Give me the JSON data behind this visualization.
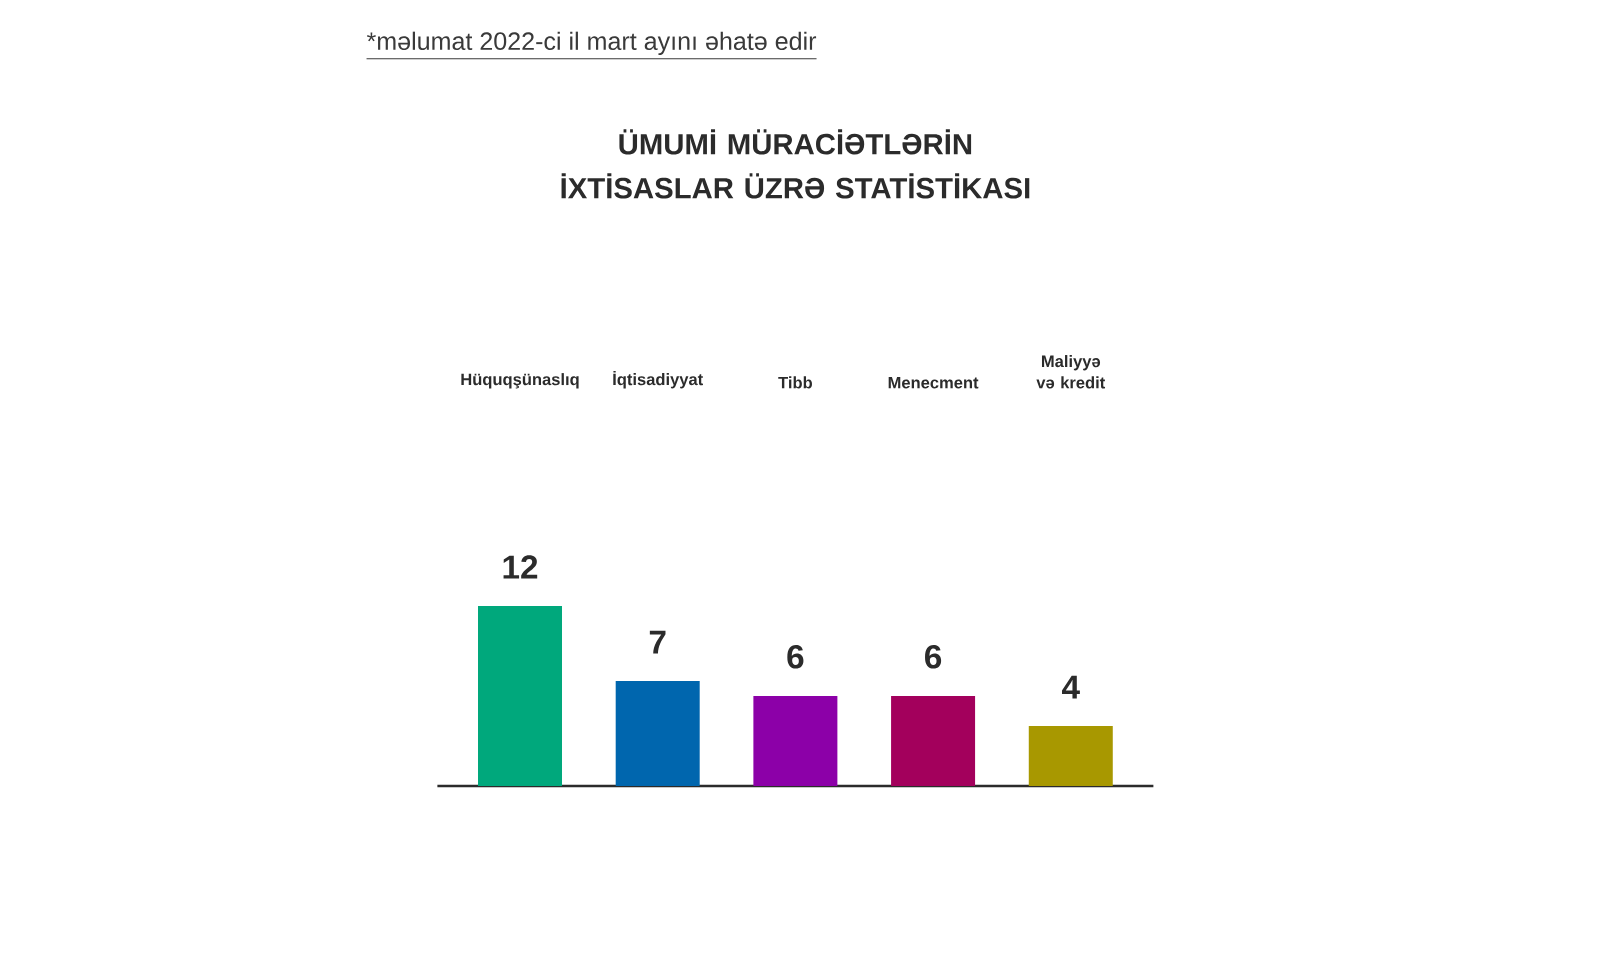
{
  "chart_data": {
    "type": "bar",
    "title": "ÜMUMİ MÜRACİƏTLƏRİN İXTİSASLAR ÜZRƏ STATİSTİKASI",
    "annotations": [
      "*məlumat 2022-ci il mart ayını əhatə edir"
    ],
    "categories": [
      "Hüquqşünaslıq",
      "İqtisadiyyat",
      "Tibb",
      "Menecment",
      "Maliyyə və kredit"
    ],
    "values": [
      12,
      7,
      6,
      6,
      4
    ],
    "colors": [
      "#00a87c",
      "#0066ae",
      "#8c00a8",
      "#a3005c",
      "#a89800"
    ],
    "data_labels": true
  }
}
